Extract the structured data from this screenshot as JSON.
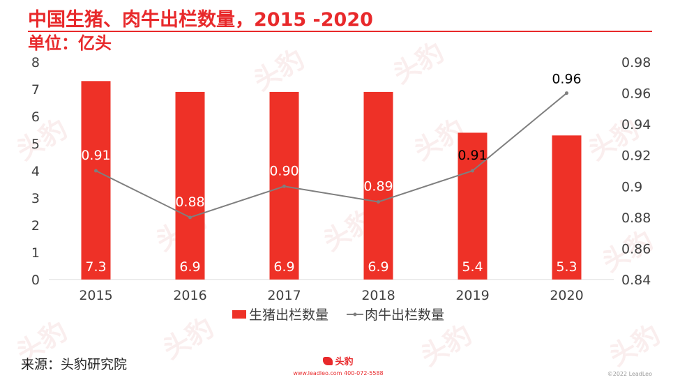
{
  "title": "中国生猪、肉牛出栏数量，2015 -2020",
  "unit": "单位：亿头",
  "source": "来源：头豹研究院",
  "footer": {
    "logo_text": "头豹",
    "contact": "www.leadleo.com   400-072-5588",
    "copyright": "©2022 LeadLeo"
  },
  "colors": {
    "bar": "#ee3127",
    "line": "#7f7f7f",
    "accent": "#e8292b",
    "watermark": "#f5dada"
  },
  "chart_data": {
    "type": "bar",
    "categories": [
      "2015",
      "2016",
      "2017",
      "2018",
      "2019",
      "2020"
    ],
    "series": [
      {
        "name": "生猪出栏数量",
        "type": "bar",
        "axis": "left",
        "values": [
          7.3,
          6.9,
          6.9,
          6.9,
          5.4,
          5.3
        ],
        "labels": [
          "7.3",
          "6.9",
          "6.9",
          "6.9",
          "5.4",
          "5.3"
        ]
      },
      {
        "name": "肉牛出栏数量",
        "type": "line",
        "axis": "right",
        "values": [
          0.91,
          0.88,
          0.9,
          0.89,
          0.91,
          0.96
        ],
        "labels": [
          "0.91",
          "0.88",
          "0.90",
          "0.89",
          "0.91",
          "0.96"
        ]
      }
    ],
    "left_axis": {
      "min": 0,
      "max": 8,
      "ticks": [
        "0",
        "1",
        "2",
        "3",
        "4",
        "5",
        "6",
        "7",
        "8"
      ]
    },
    "right_axis": {
      "min": 0.84,
      "max": 0.98,
      "ticks": [
        "0.84",
        "0.86",
        "0.88",
        "0.9",
        "0.92",
        "0.94",
        "0.96",
        "0.98"
      ]
    },
    "legend_position": "bottom",
    "grid": false
  }
}
